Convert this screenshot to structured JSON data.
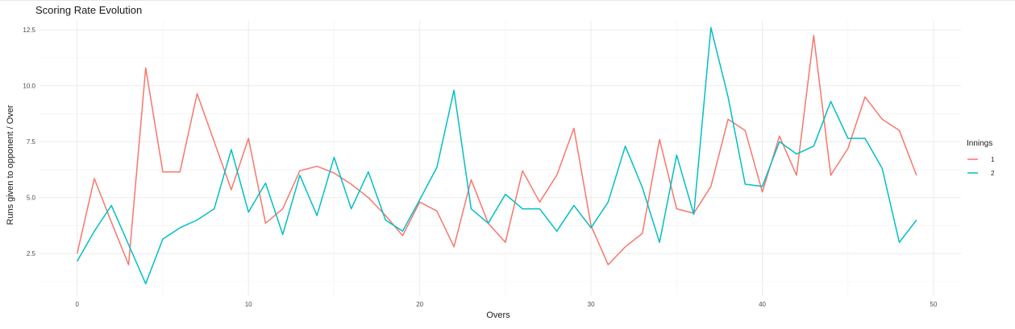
{
  "chart_data": {
    "type": "line",
    "title": "Scoring Rate Evolution",
    "xlabel": "Overs",
    "ylabel": "Runs given to opponent / Over",
    "xlim": [
      -2.2,
      51.6
    ],
    "ylim": [
      0.6,
      12.9
    ],
    "xticks": [
      0,
      10,
      20,
      30,
      40,
      50
    ],
    "yticks": [
      2.5,
      5.0,
      7.5,
      10.0,
      12.5
    ],
    "ytick_labels": [
      "2.5",
      "5.0",
      "7.5",
      "10.0",
      "12.5"
    ],
    "grid": true,
    "legend": {
      "title": "Innings",
      "position": "right"
    },
    "x": [
      0,
      1,
      2,
      3,
      4,
      5,
      6,
      7,
      8,
      9,
      10,
      11,
      12,
      13,
      14,
      15,
      16,
      17,
      18,
      19,
      20,
      21,
      22,
      23,
      24,
      25,
      26,
      27,
      28,
      29,
      30,
      31,
      32,
      33,
      34,
      35,
      36,
      37,
      38,
      39,
      40,
      41,
      42,
      43,
      44,
      45,
      46,
      47,
      48,
      49
    ],
    "series": [
      {
        "name": "1",
        "color": "#F8766D",
        "values": [
          2.5,
          5.85,
          3.9,
          2.0,
          10.8,
          6.15,
          6.15,
          9.65,
          7.5,
          5.35,
          7.65,
          3.85,
          4.5,
          6.2,
          6.4,
          6.1,
          5.6,
          5.0,
          4.2,
          3.3,
          4.8,
          4.4,
          2.8,
          5.8,
          3.85,
          3.0,
          6.2,
          4.8,
          6.0,
          8.1,
          3.75,
          2.0,
          2.8,
          3.4,
          7.6,
          4.5,
          4.3,
          5.5,
          8.5,
          8.0,
          5.25,
          7.75,
          6.0,
          12.25,
          6.0,
          7.2,
          9.5,
          8.5,
          8.0,
          6.0
        ]
      },
      {
        "name": "2",
        "color": "#00BFC4",
        "values": [
          2.15,
          3.5,
          4.65,
          2.9,
          1.15,
          3.15,
          3.65,
          4.0,
          4.5,
          7.15,
          4.35,
          5.65,
          3.35,
          6.0,
          4.2,
          6.8,
          4.5,
          6.15,
          4.0,
          3.5,
          4.9,
          6.35,
          9.8,
          4.5,
          3.85,
          5.15,
          4.5,
          4.5,
          3.5,
          4.65,
          3.65,
          4.8,
          7.3,
          5.45,
          3.0,
          6.9,
          4.25,
          12.6,
          9.5,
          5.6,
          5.5,
          7.5,
          6.95,
          7.3,
          9.3,
          7.65,
          7.65,
          6.3,
          3.0,
          4.0
        ]
      }
    ]
  }
}
